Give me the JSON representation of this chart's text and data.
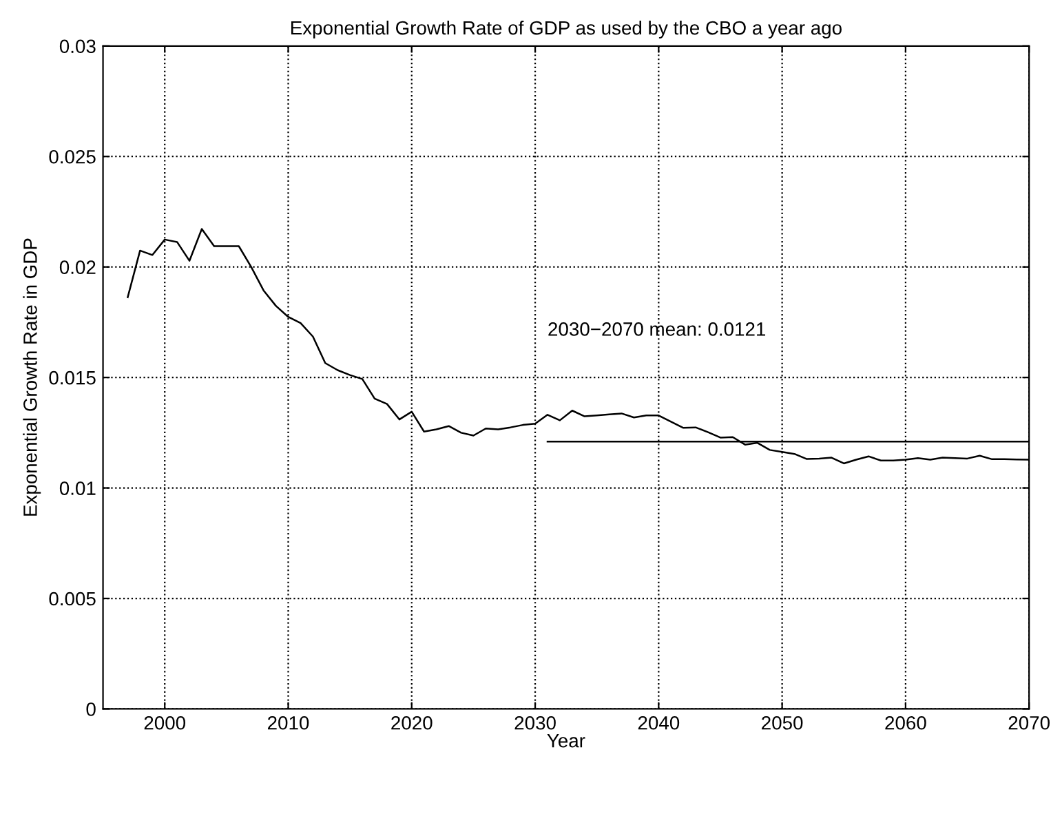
{
  "chart_data": {
    "type": "line",
    "title": "Exponential Growth Rate of GDP as used by the CBO a year ago",
    "xlabel": "Year",
    "ylabel": "Exponential Growth Rate in GDP",
    "series": [
      {
        "color": "#000000",
        "x": [
          1997,
          1998,
          1999,
          2000,
          2001,
          2002,
          2003,
          2004,
          2005,
          2006,
          2007,
          2008,
          2009,
          2010,
          2011,
          2012,
          2013,
          2014,
          2015,
          2016,
          2017,
          2018,
          2019,
          2020,
          2021,
          2022,
          2023,
          2024,
          2025,
          2026,
          2027,
          2028,
          2029,
          2030,
          2031,
          2032,
          2033,
          2034,
          2035,
          2036,
          2037,
          2038,
          2039,
          2040,
          2041,
          2042,
          2043,
          2044,
          2045,
          2046,
          2047,
          2048,
          2049,
          2050,
          2051,
          2052,
          2053,
          2054,
          2055,
          2056,
          2057,
          2058,
          2059,
          2060,
          2061,
          2062,
          2063,
          2064,
          2065,
          2066,
          2067,
          2068,
          2069,
          2070
        ],
        "values": [
          0.01863,
          0.02074,
          0.02054,
          0.02124,
          0.02113,
          0.02028,
          0.02172,
          0.02094,
          0.02094,
          0.02094,
          0.02,
          0.01894,
          0.01824,
          0.01774,
          0.01746,
          0.01685,
          0.01565,
          0.01533,
          0.01511,
          0.01493,
          0.01404,
          0.0138,
          0.0131,
          0.01345,
          0.01255,
          0.01265,
          0.0128,
          0.0125,
          0.01237,
          0.01269,
          0.01265,
          0.01274,
          0.01285,
          0.01291,
          0.01331,
          0.01306,
          0.0135,
          0.01324,
          0.01328,
          0.01333,
          0.01337,
          0.01319,
          0.01328,
          0.01328,
          0.013,
          0.01272,
          0.01274,
          0.01252,
          0.01228,
          0.0123,
          0.01196,
          0.01204,
          0.01172,
          0.01163,
          0.01154,
          0.01131,
          0.01133,
          0.01137,
          0.01111,
          0.01128,
          0.01143,
          0.01124,
          0.01124,
          0.01128,
          0.01135,
          0.01128,
          0.01137,
          0.01135,
          0.01133,
          0.01146,
          0.0113,
          0.0113,
          0.01129,
          0.01128
        ]
      },
      {
        "color": "#000000",
        "x": [
          2031,
          2070
        ],
        "values": [
          0.0121,
          0.0121
        ]
      }
    ],
    "annotations": [
      "2030−2070 mean: 0.0121"
    ],
    "xlim": [
      1995,
      2070
    ],
    "xticks": [
      2000,
      2010,
      2020,
      2030,
      2040,
      2050,
      2060,
      2070
    ],
    "ylim": [
      0,
      0.03
    ],
    "yticks": [
      0,
      0.005,
      0.01,
      0.015,
      0.02,
      0.025,
      0.03
    ],
    "grid": true,
    "line_style": "solid",
    "marker": "none"
  }
}
